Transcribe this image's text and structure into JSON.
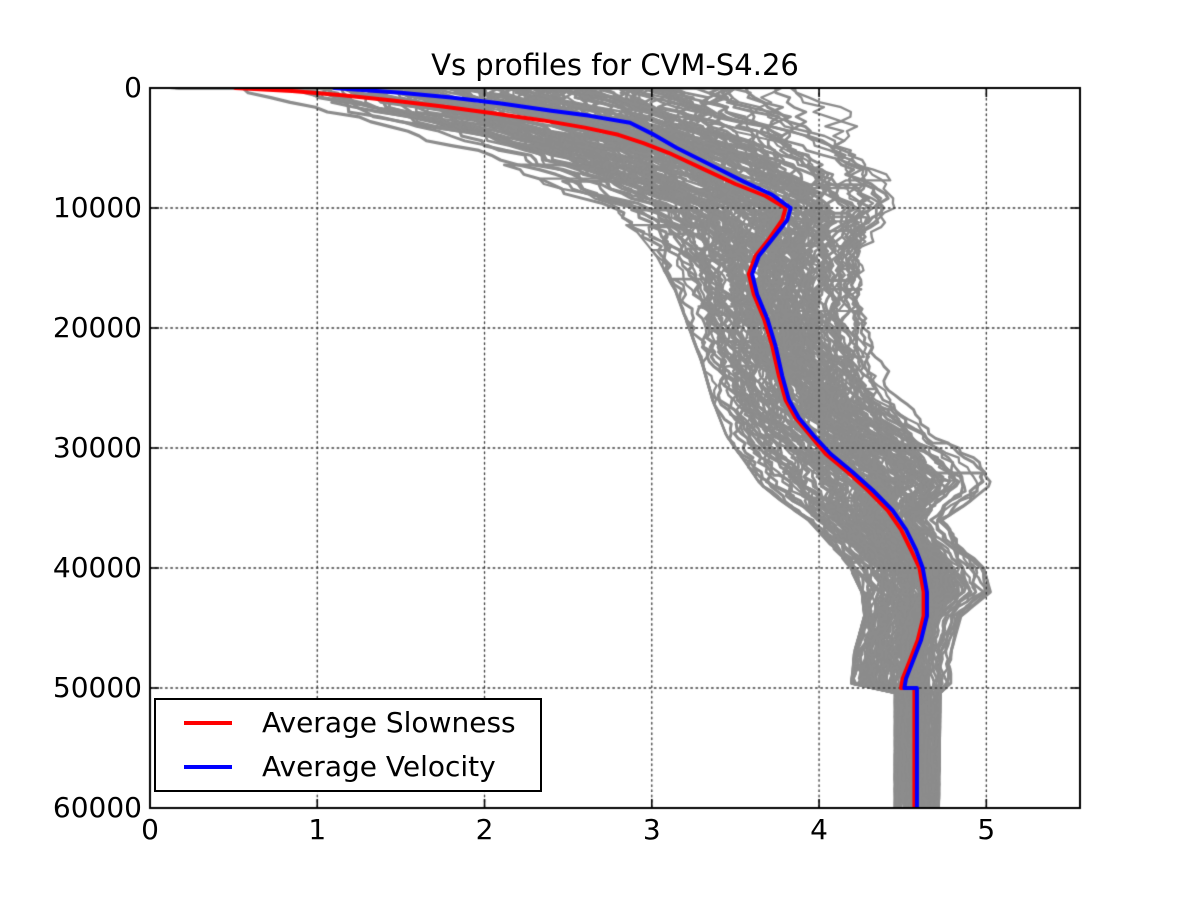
{
  "chart_data": {
    "type": "line",
    "title": "Vs profiles for CVM-S4.26",
    "xlabel": "",
    "ylabel": "",
    "x_axis": {
      "min": 0,
      "max": 5.56,
      "ticks": [
        0,
        1,
        2,
        3,
        4,
        5
      ],
      "tick_labels": [
        "0",
        "1",
        "2",
        "3",
        "4",
        "5"
      ]
    },
    "y_axis": {
      "min": 0,
      "max": 60000,
      "inverted": true,
      "ticks": [
        0,
        10000,
        20000,
        30000,
        40000,
        50000,
        60000
      ],
      "tick_labels": [
        "0",
        "10000",
        "20000",
        "30000",
        "40000",
        "50000",
        "60000"
      ]
    },
    "grid": {
      "visible": true,
      "style": "dotted",
      "color": "#3a3a3a"
    },
    "frame_color": "#000000",
    "background": "#ffffff",
    "legend": {
      "position": "lower left",
      "items": [
        {
          "label": "Average Slowness",
          "color": "#ff0000"
        },
        {
          "label": "Average Velocity",
          "color": "#0000ff"
        }
      ]
    },
    "series": [
      {
        "name": "Average Slowness",
        "color": "#ff0000",
        "linewidth": 4,
        "points_vd": [
          [
            0.51,
            0
          ],
          [
            0.85,
            250
          ],
          [
            1.15,
            600
          ],
          [
            1.45,
            1050
          ],
          [
            1.75,
            1550
          ],
          [
            2.05,
            2100
          ],
          [
            2.35,
            2700
          ],
          [
            2.6,
            3300
          ],
          [
            2.8,
            3900
          ],
          [
            2.95,
            4600
          ],
          [
            3.1,
            5400
          ],
          [
            3.3,
            6700
          ],
          [
            3.5,
            8000
          ],
          [
            3.68,
            9000
          ],
          [
            3.8,
            10000
          ],
          [
            3.78,
            11000
          ],
          [
            3.7,
            12600
          ],
          [
            3.62,
            14000
          ],
          [
            3.58,
            15500
          ],
          [
            3.61,
            17200
          ],
          [
            3.67,
            19200
          ],
          [
            3.72,
            21500
          ],
          [
            3.76,
            24000
          ],
          [
            3.8,
            26000
          ],
          [
            3.86,
            27500
          ],
          [
            3.95,
            29000
          ],
          [
            4.04,
            30500
          ],
          [
            4.17,
            32000
          ],
          [
            4.29,
            33500
          ],
          [
            4.41,
            35200
          ],
          [
            4.49,
            36800
          ],
          [
            4.55,
            38500
          ],
          [
            4.6,
            40000
          ],
          [
            4.625,
            42000
          ],
          [
            4.625,
            44000
          ],
          [
            4.59,
            46000
          ],
          [
            4.54,
            47800
          ],
          [
            4.5,
            49200
          ],
          [
            4.49,
            50000
          ],
          [
            4.57,
            50000
          ],
          [
            4.57,
            60000
          ]
        ]
      },
      {
        "name": "Average Velocity",
        "color": "#0000ff",
        "linewidth": 4,
        "points_vd": [
          [
            1.1,
            0
          ],
          [
            1.5,
            400
          ],
          [
            1.8,
            800
          ],
          [
            2.1,
            1300
          ],
          [
            2.4,
            1900
          ],
          [
            2.62,
            2300
          ],
          [
            2.87,
            2900
          ],
          [
            3.0,
            3800
          ],
          [
            3.15,
            5000
          ],
          [
            3.35,
            6400
          ],
          [
            3.55,
            7800
          ],
          [
            3.72,
            8900
          ],
          [
            3.83,
            10000
          ],
          [
            3.81,
            11000
          ],
          [
            3.72,
            12600
          ],
          [
            3.64,
            14000
          ],
          [
            3.6,
            15500
          ],
          [
            3.63,
            17200
          ],
          [
            3.69,
            19200
          ],
          [
            3.74,
            21500
          ],
          [
            3.78,
            24000
          ],
          [
            3.82,
            26000
          ],
          [
            3.88,
            27500
          ],
          [
            3.97,
            29000
          ],
          [
            4.07,
            30500
          ],
          [
            4.2,
            32000
          ],
          [
            4.32,
            33500
          ],
          [
            4.44,
            35200
          ],
          [
            4.52,
            36800
          ],
          [
            4.58,
            38500
          ],
          [
            4.62,
            40000
          ],
          [
            4.645,
            42000
          ],
          [
            4.645,
            44000
          ],
          [
            4.61,
            46000
          ],
          [
            4.56,
            47800
          ],
          [
            4.52,
            49200
          ],
          [
            4.51,
            50000
          ],
          [
            4.585,
            50000
          ],
          [
            4.585,
            60000
          ]
        ]
      }
    ],
    "ensemble": {
      "description": "Individual Vs(depth) profiles for CVM-S4.26 drawn in gray; approximated by a depth-dependent velocity envelope [lo,hi] (km/s vs depth m)",
      "color": "#8c8c8c",
      "count": 140,
      "seed": 20,
      "envelope_dlh": [
        [
          0,
          0.15,
          4.25
        ],
        [
          1000,
          0.32,
          4.3
        ],
        [
          2500,
          0.78,
          4.35
        ],
        [
          4000,
          1.3,
          4.4
        ],
        [
          5500,
          1.75,
          4.46
        ],
        [
          7000,
          2.1,
          4.52
        ],
        [
          8500,
          2.35,
          4.58
        ],
        [
          10000,
          2.65,
          4.58
        ],
        [
          12000,
          2.88,
          4.48
        ],
        [
          14000,
          3.0,
          4.4
        ],
        [
          17000,
          3.12,
          4.35
        ],
        [
          20000,
          3.2,
          4.35
        ],
        [
          23000,
          3.28,
          4.42
        ],
        [
          26000,
          3.34,
          4.52
        ],
        [
          29000,
          3.42,
          4.78
        ],
        [
          31000,
          3.52,
          4.98
        ],
        [
          33000,
          3.62,
          5.06
        ],
        [
          34500,
          3.76,
          4.92
        ],
        [
          36000,
          3.92,
          4.76
        ],
        [
          38000,
          4.05,
          4.86
        ],
        [
          40000,
          4.17,
          5.0
        ],
        [
          42000,
          4.24,
          5.04
        ],
        [
          44000,
          4.26,
          4.86
        ],
        [
          47000,
          4.2,
          4.8
        ],
        [
          49900,
          4.18,
          4.8
        ],
        [
          50100,
          4.45,
          4.73
        ],
        [
          60000,
          4.45,
          4.72
        ]
      ]
    }
  }
}
